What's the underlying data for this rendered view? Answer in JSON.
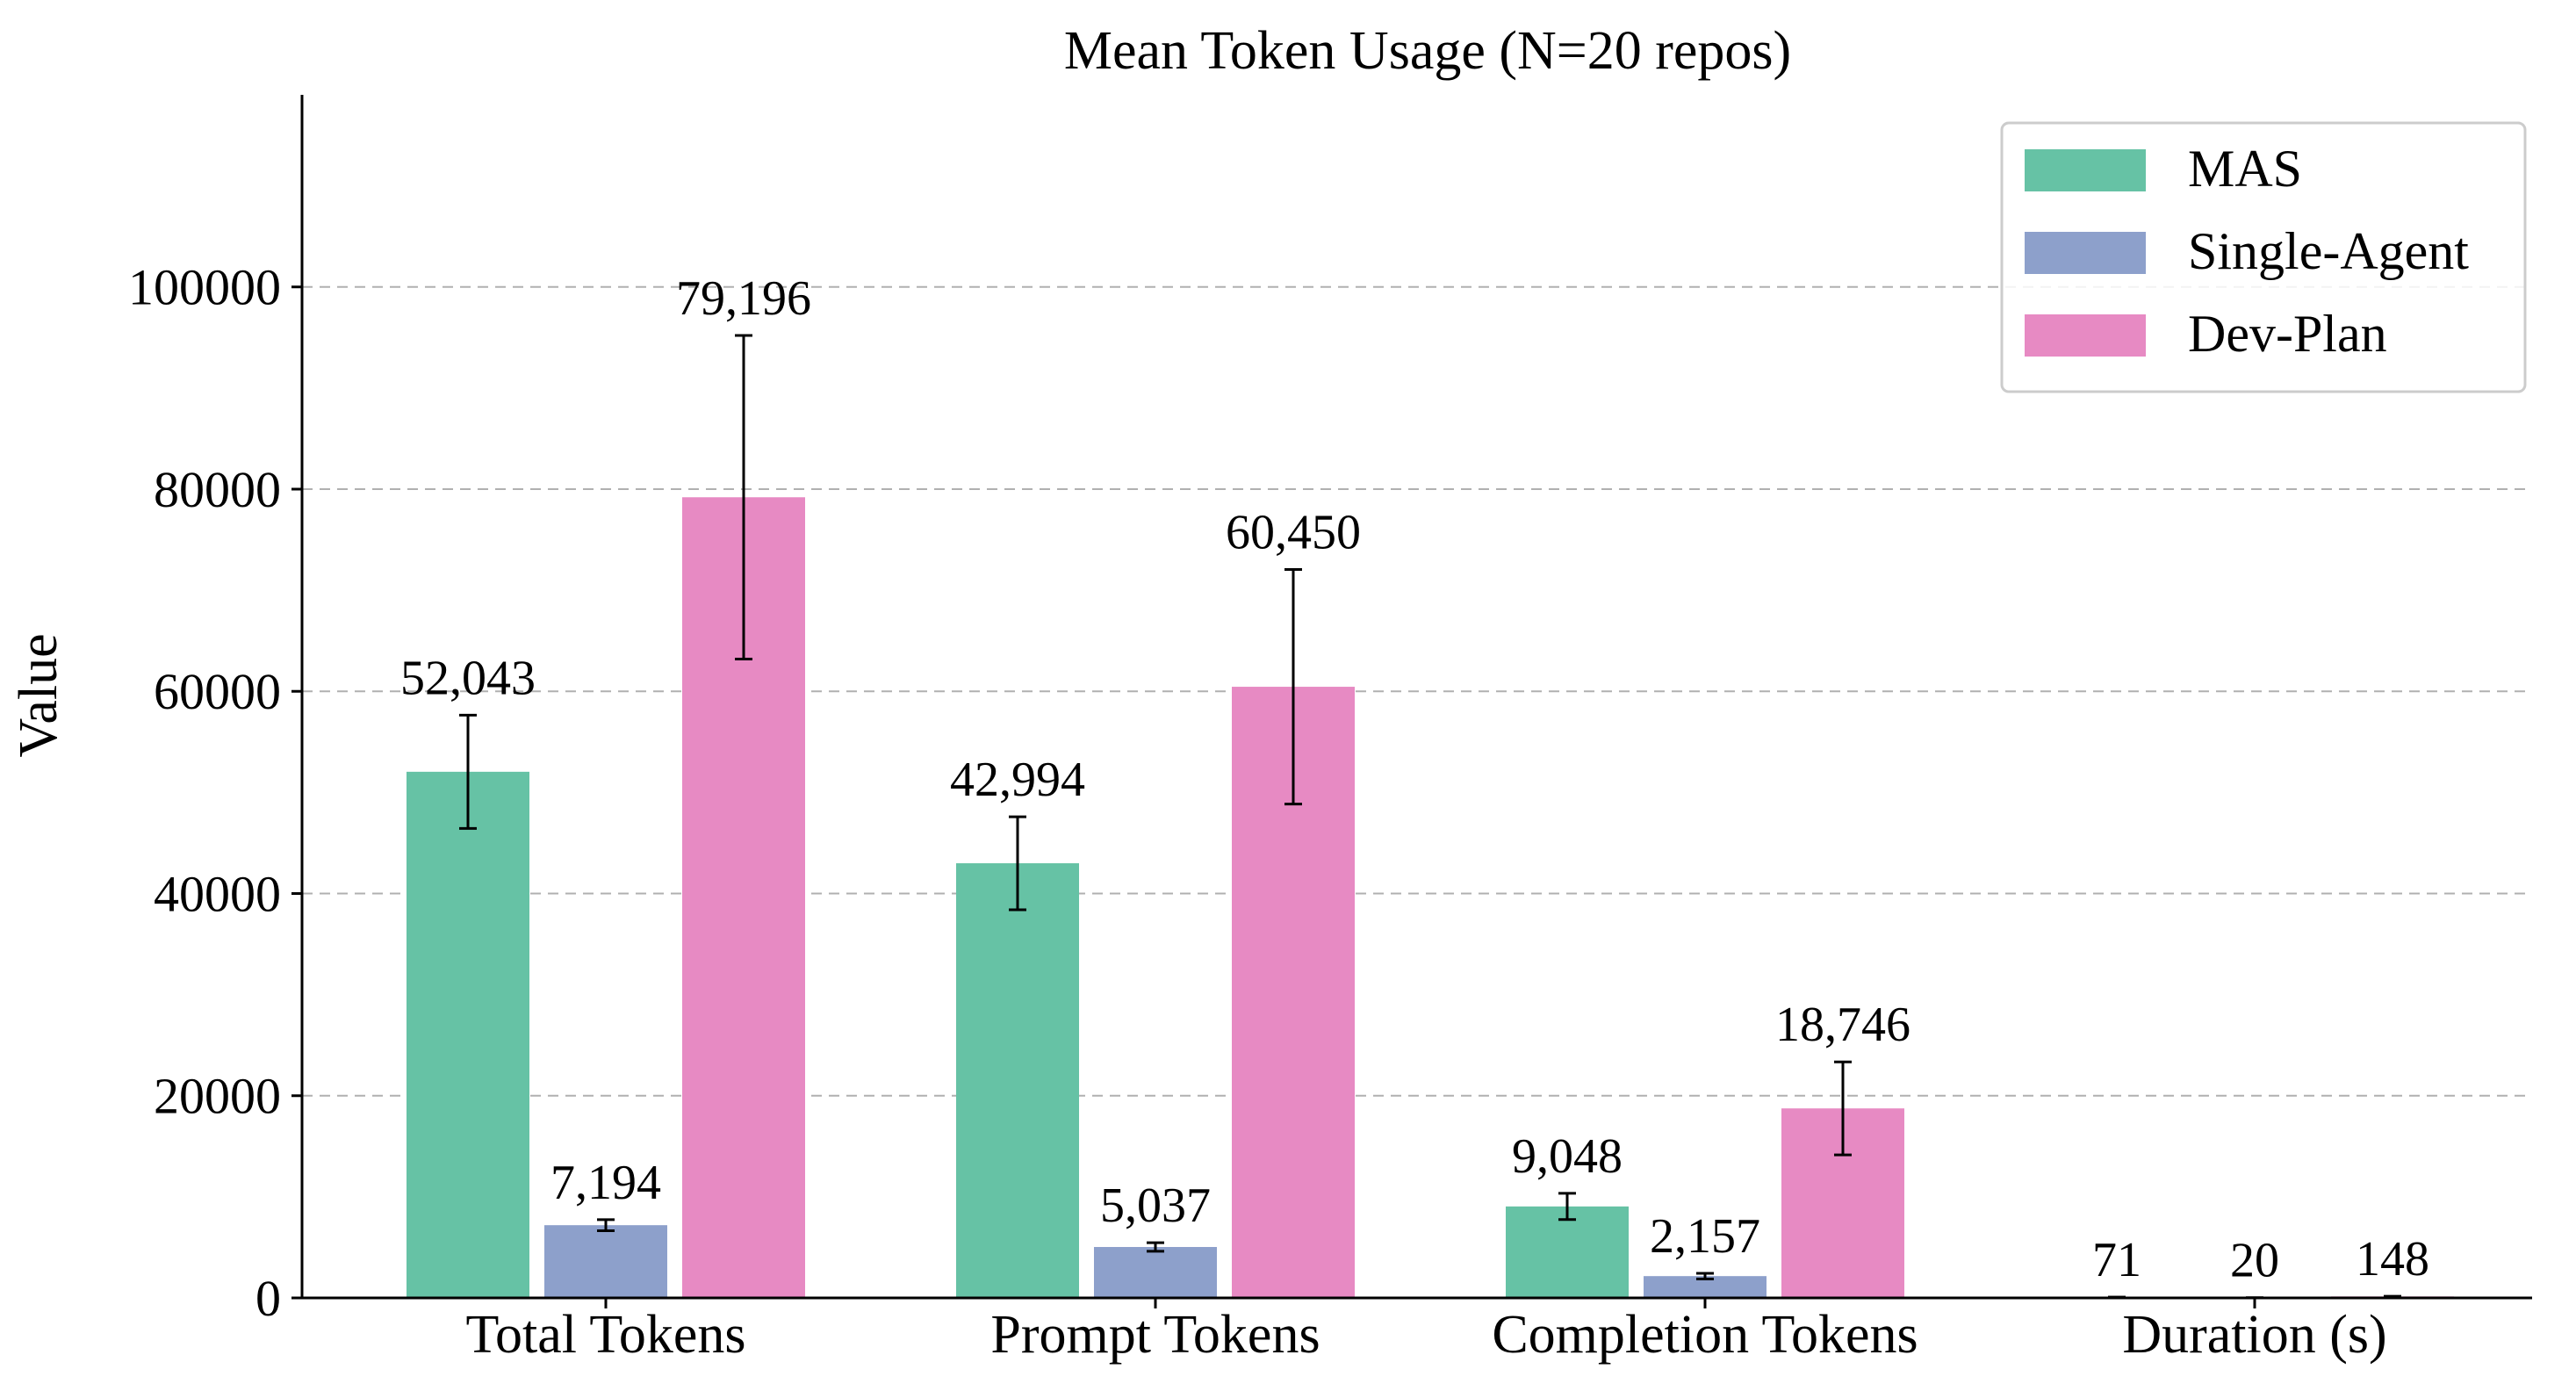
{
  "chart_data": {
    "type": "bar",
    "title": "Mean Token Usage (N=20 repos)",
    "xlabel": "",
    "ylabel": "Value",
    "ylim": [
      0,
      119000
    ],
    "yticks": [
      0,
      20000,
      40000,
      60000,
      80000,
      100000
    ],
    "ytick_labels": [
      "0",
      "20000",
      "40000",
      "60000",
      "80000",
      "100000"
    ],
    "grid": true,
    "legend_position": "top-right",
    "categories": [
      "Total Tokens",
      "Prompt Tokens",
      "Completion Tokens",
      "Duration (s)"
    ],
    "series": [
      {
        "name": "MAS",
        "color": "#66c2a5",
        "values": [
          52043,
          42994,
          9048,
          71
        ],
        "errors": [
          5600,
          4600,
          1300,
          10
        ],
        "labels": [
          "52,043",
          "42,994",
          "9,048",
          "71"
        ]
      },
      {
        "name": "Single-Agent",
        "color": "#8da0cb",
        "values": [
          7194,
          5037,
          2157,
          20
        ],
        "errors": [
          550,
          420,
          280,
          5
        ],
        "labels": [
          "7,194",
          "5,037",
          "2,157",
          "20"
        ]
      },
      {
        "name": "Dev-Plan",
        "color": "#e78ac3",
        "values": [
          79196,
          60450,
          18746,
          148
        ],
        "errors": [
          16000,
          11600,
          4600,
          20
        ],
        "labels": [
          "79,196",
          "60,450",
          "18,746",
          "148"
        ]
      }
    ]
  }
}
